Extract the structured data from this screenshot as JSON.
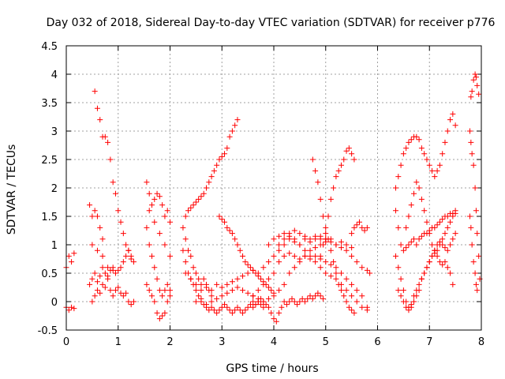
{
  "chart_data": {
    "type": "scatter",
    "title": "Day 032 of 2018, Sidereal Day-to-day VTEC variation (SDTVAR) for receiver p776",
    "xlabel": "GPS time / hours",
    "ylabel": "SDTVAR / TECUs",
    "xlim": [
      0,
      8
    ],
    "ylim": [
      -0.5,
      4.5
    ],
    "xticks": [
      0,
      1,
      2,
      3,
      4,
      5,
      6,
      7,
      8
    ],
    "yticks": [
      -0.5,
      0,
      0.5,
      1,
      1.5,
      2,
      2.5,
      3,
      3.5,
      4,
      4.5
    ],
    "xtick_labels": [
      "0",
      "1",
      "2",
      "3",
      "4",
      "5",
      "6",
      "7",
      "8"
    ],
    "ytick_labels": [
      "-0.5",
      "0",
      "0.5",
      "1",
      "1.5",
      "2",
      "2.5",
      "3",
      "3.5",
      "4",
      "4.5"
    ],
    "grid": true,
    "marker": "+",
    "color": "#ff0000",
    "series": [
      {
        "name": "s1",
        "x": [
          0.0,
          0.05,
          0.1,
          0.15
        ],
        "y": [
          0.6,
          0.8,
          0.7,
          0.85
        ]
      },
      {
        "name": "s2",
        "x": [
          0.0,
          0.05,
          0.1,
          0.15
        ],
        "y": [
          -0.1,
          -0.15,
          -0.1,
          -0.12
        ]
      },
      {
        "name": "s3",
        "x": [
          0.55,
          0.6,
          0.65,
          0.7,
          0.75,
          0.8,
          0.85,
          0.9,
          0.95,
          1.0,
          1.05,
          1.1,
          1.15,
          1.2,
          1.25,
          1.3
        ],
        "y": [
          3.7,
          3.4,
          3.2,
          2.9,
          2.9,
          2.8,
          2.5,
          2.1,
          1.9,
          1.6,
          1.4,
          1.2,
          1.0,
          0.9,
          0.8,
          0.7
        ]
      },
      {
        "name": "s4",
        "x": [
          0.45,
          0.5,
          0.55,
          0.6,
          0.65,
          0.7
        ],
        "y": [
          1.7,
          1.5,
          1.6,
          1.5,
          1.3,
          1.1
        ]
      },
      {
        "name": "s5",
        "x": [
          0.45,
          0.5,
          0.55,
          0.6,
          0.65,
          0.7,
          0.75,
          0.8,
          0.85,
          0.9,
          0.95,
          1.0,
          1.05,
          1.1,
          1.15,
          1.2,
          1.25
        ],
        "y": [
          0.3,
          0.4,
          0.5,
          0.35,
          0.45,
          0.6,
          0.5,
          0.45,
          0.55,
          0.6,
          0.5,
          0.55,
          0.6,
          0.7,
          0.8,
          0.9,
          0.75
        ]
      },
      {
        "name": "s6",
        "x": [
          0.5,
          0.55,
          0.6,
          0.65,
          0.7,
          0.75,
          0.8,
          0.85,
          0.9,
          0.95,
          1.0,
          1.05,
          1.1,
          1.15,
          1.2,
          1.25,
          1.3
        ],
        "y": [
          0.0,
          0.1,
          0.2,
          0.15,
          0.3,
          0.25,
          0.4,
          0.2,
          0.1,
          0.2,
          0.25,
          0.15,
          0.1,
          0.15,
          0.0,
          -0.05,
          0.0
        ]
      },
      {
        "name": "s7",
        "x": [
          0.5,
          0.6,
          0.7,
          0.8,
          0.9
        ],
        "y": [
          1.0,
          0.9,
          0.8,
          0.6,
          0.55
        ]
      },
      {
        "name": "s8",
        "x": [
          1.55,
          1.6,
          1.65,
          1.7,
          1.75,
          1.8,
          1.85,
          1.9,
          1.95,
          2.0
        ],
        "y": [
          2.1,
          1.9,
          1.7,
          1.8,
          1.9,
          1.85,
          1.7,
          1.5,
          1.6,
          1.4
        ]
      },
      {
        "name": "s9",
        "x": [
          1.55,
          1.6,
          1.65,
          1.7,
          1.75,
          1.8,
          1.85,
          1.9,
          1.95,
          2.0
        ],
        "y": [
          1.3,
          1.0,
          0.8,
          0.6,
          0.4,
          0.2,
          0.1,
          0.2,
          0.3,
          0.2
        ]
      },
      {
        "name": "s10",
        "x": [
          1.55,
          1.6,
          1.65,
          1.7,
          1.75,
          1.8,
          1.85,
          1.9,
          1.95,
          2.0
        ],
        "y": [
          0.3,
          0.2,
          0.1,
          0.0,
          -0.2,
          -0.3,
          -0.25,
          -0.2,
          0.0,
          0.1
        ]
      },
      {
        "name": "s11",
        "x": [
          1.6,
          1.7,
          1.8,
          1.9,
          2.0
        ],
        "y": [
          1.6,
          1.4,
          1.2,
          1.0,
          0.8
        ]
      },
      {
        "name": "s12",
        "x": [
          2.25,
          2.3,
          2.35,
          2.4,
          2.45,
          2.5,
          2.55,
          2.6,
          2.65,
          2.7,
          2.75,
          2.8,
          2.85,
          2.9,
          2.95,
          3.0,
          3.05,
          3.1,
          3.15,
          3.2,
          3.25,
          3.3
        ],
        "y": [
          1.3,
          1.5,
          1.6,
          1.65,
          1.7,
          1.75,
          1.8,
          1.85,
          1.9,
          2.0,
          2.1,
          2.2,
          2.3,
          2.4,
          2.5,
          2.55,
          2.6,
          2.7,
          2.9,
          3.0,
          3.1,
          3.2
        ]
      },
      {
        "name": "s13",
        "x": [
          2.25,
          2.3,
          2.35,
          2.4,
          2.45,
          2.5,
          2.55,
          2.6,
          2.65,
          2.7,
          2.75,
          2.8,
          2.85,
          2.9,
          2.95,
          3.0,
          3.05,
          3.1,
          3.15,
          3.2,
          3.25,
          3.3,
          3.35,
          3.4,
          3.45,
          3.5,
          3.55,
          3.6,
          3.65,
          3.7,
          3.75,
          3.8
        ],
        "y": [
          0.9,
          0.7,
          0.5,
          0.4,
          0.3,
          0.2,
          0.1,
          0.0,
          -0.05,
          -0.1,
          -0.15,
          -0.1,
          -0.15,
          -0.2,
          -0.15,
          -0.1,
          -0.05,
          -0.1,
          -0.15,
          -0.2,
          -0.15,
          -0.1,
          -0.15,
          -0.2,
          -0.15,
          -0.1,
          -0.05,
          -0.1,
          -0.05,
          0.0,
          -0.05,
          -0.1
        ]
      },
      {
        "name": "s14",
        "x": [
          2.3,
          2.4,
          2.5,
          2.6,
          2.7,
          2.8,
          2.9,
          3.0,
          3.1,
          3.2,
          3.3,
          3.4,
          3.5,
          3.6,
          3.7,
          3.8,
          3.9,
          4.0,
          4.1,
          4.2,
          4.3,
          4.4,
          4.5,
          4.6,
          4.7,
          4.8,
          4.9,
          5.0
        ],
        "y": [
          0.5,
          0.4,
          0.3,
          0.2,
          0.25,
          0.2,
          0.3,
          0.25,
          0.3,
          0.35,
          0.4,
          0.45,
          0.5,
          0.55,
          0.5,
          0.6,
          0.7,
          0.8,
          0.9,
          1.0,
          1.1,
          1.05,
          1.0,
          1.1,
          1.05,
          1.1,
          1.15,
          1.1
        ]
      },
      {
        "name": "s15",
        "x": [
          2.3,
          2.35,
          2.4,
          2.45,
          2.5,
          2.55,
          2.6,
          2.65,
          2.7,
          2.75,
          2.8
        ],
        "y": [
          1.1,
          0.9,
          0.8,
          0.6,
          0.5,
          0.4,
          0.3,
          0.4,
          0.3,
          0.2,
          0.1
        ]
      },
      {
        "name": "s16",
        "x": [
          2.95,
          3.0,
          3.05,
          3.1,
          3.15,
          3.2,
          3.25,
          3.3,
          3.35,
          3.4,
          3.45,
          3.5,
          3.55,
          3.6,
          3.65,
          3.7,
          3.75,
          3.8,
          3.85,
          3.9,
          3.95,
          4.0
        ],
        "y": [
          1.5,
          1.45,
          1.4,
          1.3,
          1.25,
          1.2,
          1.1,
          1.0,
          0.9,
          0.8,
          0.7,
          0.65,
          0.6,
          0.55,
          0.5,
          0.45,
          0.4,
          0.35,
          0.3,
          0.25,
          0.2,
          0.15
        ]
      },
      {
        "name": "s17",
        "x": [
          2.5,
          2.6,
          2.7,
          2.8,
          2.9,
          3.0,
          3.1,
          3.2,
          3.3,
          3.4,
          3.5,
          3.6,
          3.7,
          3.8,
          3.9,
          4.0,
          4.1,
          4.2,
          4.3,
          4.4,
          4.5,
          4.6,
          4.7,
          4.8,
          4.9,
          5.0,
          5.1,
          5.2,
          5.3,
          5.4,
          5.5
        ],
        "y": [
          0.0,
          0.05,
          -0.05,
          0.0,
          0.05,
          0.1,
          0.15,
          0.2,
          0.25,
          0.2,
          0.15,
          0.1,
          0.05,
          0.0,
          0.05,
          0.1,
          0.2,
          0.3,
          0.5,
          0.6,
          0.7,
          0.8,
          0.9,
          0.95,
          1.0,
          1.1,
          1.05,
          1.0,
          1.05,
          1.0,
          0.95
        ]
      },
      {
        "name": "s18",
        "x": [
          3.6,
          3.7,
          3.8,
          3.9,
          4.0,
          4.1,
          4.2,
          4.3,
          4.4,
          4.5,
          4.6,
          4.7,
          4.8,
          4.9,
          5.0,
          5.1,
          5.2,
          5.3,
          5.4,
          5.5,
          5.6,
          5.7,
          5.8
        ],
        "y": [
          0.1,
          0.2,
          0.3,
          0.4,
          0.5,
          0.7,
          0.8,
          0.85,
          0.8,
          0.75,
          0.8,
          0.75,
          0.8,
          0.75,
          0.7,
          0.65,
          0.6,
          0.5,
          0.4,
          0.3,
          0.2,
          0.1,
          -0.1
        ]
      },
      {
        "name": "s19",
        "x": [
          3.6,
          3.65,
          3.7,
          3.75,
          3.8,
          3.85,
          3.9,
          3.95,
          4.0,
          4.05,
          4.1,
          4.15,
          4.2,
          4.25,
          4.3,
          4.35,
          4.4,
          4.45,
          4.5,
          4.55,
          4.6,
          4.65,
          4.7,
          4.75,
          4.8,
          4.85,
          4.9,
          4.95
        ],
        "y": [
          0.0,
          -0.05,
          0.0,
          0.05,
          0.0,
          -0.05,
          -0.1,
          -0.2,
          -0.3,
          -0.35,
          -0.2,
          -0.1,
          0.0,
          -0.05,
          0.0,
          0.05,
          0.0,
          -0.05,
          0.0,
          0.05,
          0.0,
          0.05,
          0.1,
          0.05,
          0.1,
          0.15,
          0.1,
          0.05
        ]
      },
      {
        "name": "s20",
        "x": [
          3.9,
          4.0,
          4.1,
          4.2,
          4.3,
          4.4,
          4.5,
          4.6,
          4.7,
          4.8,
          4.9,
          5.0,
          5.1,
          5.2,
          5.3,
          5.4,
          5.5,
          5.6,
          5.7,
          5.8
        ],
        "y": [
          1.0,
          1.1,
          1.15,
          1.2,
          1.15,
          1.1,
          1.0,
          0.9,
          0.8,
          0.7,
          0.6,
          0.5,
          0.45,
          0.4,
          0.3,
          0.2,
          0.1,
          0.0,
          -0.1,
          -0.15
        ]
      },
      {
        "name": "s21",
        "x": [
          4.1,
          4.2,
          4.3,
          4.4,
          4.5,
          4.6,
          4.7,
          4.8,
          4.9,
          5.0,
          5.1,
          5.2,
          5.3,
          5.4,
          5.5,
          5.6,
          5.7,
          5.8,
          5.85
        ],
        "y": [
          1.0,
          1.1,
          1.2,
          1.25,
          1.2,
          1.15,
          1.1,
          1.15,
          1.1,
          1.05,
          1.1,
          1.0,
          0.95,
          0.9,
          0.8,
          0.7,
          0.6,
          0.55,
          0.5
        ]
      },
      {
        "name": "s22",
        "x": [
          4.75,
          4.8,
          4.85,
          4.9,
          4.95,
          5.0,
          5.05,
          5.1,
          5.15,
          5.2,
          5.25,
          5.3,
          5.35,
          5.4,
          5.45,
          5.5,
          5.55
        ],
        "y": [
          2.5,
          2.3,
          2.1,
          1.8,
          1.5,
          1.3,
          1.1,
          0.9,
          0.7,
          0.5,
          0.3,
          0.2,
          0.1,
          0.0,
          -0.1,
          -0.15,
          -0.2
        ]
      },
      {
        "name": "s23",
        "x": [
          4.9,
          4.95,
          5.0,
          5.05,
          5.1,
          5.15,
          5.2,
          5.25,
          5.3,
          5.35,
          5.4,
          5.45,
          5.5,
          5.55
        ],
        "y": [
          0.8,
          1.0,
          1.2,
          1.5,
          1.8,
          2.0,
          2.2,
          2.3,
          2.4,
          2.5,
          2.65,
          2.7,
          2.6,
          2.5
        ]
      },
      {
        "name": "s24",
        "x": [
          5.5,
          5.55,
          5.6,
          5.65,
          5.7,
          5.75,
          5.8
        ],
        "y": [
          1.2,
          1.3,
          1.35,
          1.4,
          1.3,
          1.25,
          1.3
        ]
      },
      {
        "name": "s25",
        "x": [
          6.35,
          6.4,
          6.45,
          6.5,
          6.55,
          6.6,
          6.65,
          6.7,
          6.75,
          6.8,
          6.85,
          6.9,
          6.95,
          7.0,
          7.05,
          7.1,
          7.15,
          7.2,
          7.25,
          7.3,
          7.35,
          7.4,
          7.45,
          7.5
        ],
        "y": [
          1.6,
          1.3,
          1.0,
          0.9,
          0.95,
          1.0,
          1.05,
          1.1,
          1.0,
          1.1,
          1.15,
          1.2,
          1.2,
          1.25,
          1.3,
          1.3,
          1.35,
          1.4,
          1.45,
          1.5,
          1.5,
          1.55,
          1.55,
          1.6
        ]
      },
      {
        "name": "s26",
        "x": [
          6.35,
          6.4,
          6.45,
          6.5,
          6.55,
          6.6,
          6.65,
          6.7,
          6.75,
          6.8,
          6.85,
          6.9,
          6.95,
          7.0,
          7.05,
          7.1,
          7.15,
          7.2,
          7.25,
          7.3,
          7.35,
          7.4,
          7.45,
          7.5
        ],
        "y": [
          2.0,
          2.2,
          2.4,
          2.6,
          2.7,
          2.8,
          2.85,
          2.9,
          2.9,
          2.85,
          2.7,
          2.6,
          2.5,
          2.4,
          2.3,
          2.2,
          2.3,
          2.4,
          2.6,
          2.8,
          3.0,
          3.2,
          3.3,
          3.1
        ]
      },
      {
        "name": "s27",
        "x": [
          6.35,
          6.4,
          6.45,
          6.5,
          6.55,
          6.6,
          6.65,
          6.7,
          6.75,
          6.8,
          6.85,
          6.9,
          6.95,
          7.0,
          7.05,
          7.1,
          7.15,
          7.2,
          7.25,
          7.3,
          7.35,
          7.4,
          7.45,
          7.5
        ],
        "y": [
          0.8,
          0.6,
          0.4,
          0.2,
          0.0,
          -0.1,
          -0.05,
          0.1,
          0.2,
          0.3,
          0.4,
          0.5,
          0.6,
          0.7,
          0.8,
          0.9,
          1.0,
          1.05,
          1.0,
          0.95,
          0.9,
          1.0,
          1.1,
          1.2
        ]
      },
      {
        "name": "s28",
        "x": [
          6.4,
          6.45,
          6.5,
          6.55,
          6.6,
          6.65,
          6.7,
          6.75,
          6.8,
          6.85,
          6.9,
          6.95,
          7.0,
          7.05,
          7.1,
          7.15,
          7.2,
          7.25,
          7.3,
          7.35,
          7.4,
          7.45,
          7.5
        ],
        "y": [
          0.2,
          0.1,
          0.0,
          -0.1,
          -0.15,
          -0.1,
          0.0,
          0.1,
          0.2,
          0.4,
          0.5,
          0.6,
          0.7,
          0.8,
          0.85,
          0.9,
          1.0,
          1.1,
          1.2,
          1.3,
          1.4,
          1.5,
          1.55
        ]
      },
      {
        "name": "s29",
        "x": [
          6.55,
          6.6,
          6.65,
          6.7,
          6.75,
          6.8,
          6.85,
          6.9,
          6.95,
          7.0,
          7.05,
          7.1,
          7.15,
          7.2,
          7.25,
          7.3,
          7.35,
          7.4,
          7.45
        ],
        "y": [
          1.3,
          1.5,
          1.7,
          1.9,
          2.1,
          2.0,
          1.8,
          1.6,
          1.4,
          1.2,
          1.0,
          0.9,
          0.8,
          0.7,
          0.65,
          0.7,
          0.6,
          0.5,
          0.3
        ]
      },
      {
        "name": "s30",
        "x": [
          7.8,
          7.82,
          7.85,
          7.88,
          7.9,
          7.92,
          7.95
        ],
        "y": [
          3.6,
          3.7,
          3.9,
          4.0,
          3.95,
          3.8,
          3.65
        ]
      },
      {
        "name": "s31",
        "x": [
          7.78,
          7.8,
          7.82,
          7.85,
          7.88,
          7.9,
          7.92,
          7.95,
          7.97
        ],
        "y": [
          3.0,
          2.8,
          2.6,
          2.4,
          2.0,
          1.6,
          1.2,
          0.8,
          0.4
        ]
      },
      {
        "name": "s32",
        "x": [
          7.78,
          7.8,
          7.82,
          7.85,
          7.88,
          7.9,
          7.92
        ],
        "y": [
          1.5,
          1.3,
          1.0,
          0.7,
          0.5,
          0.3,
          0.2
        ]
      }
    ]
  }
}
